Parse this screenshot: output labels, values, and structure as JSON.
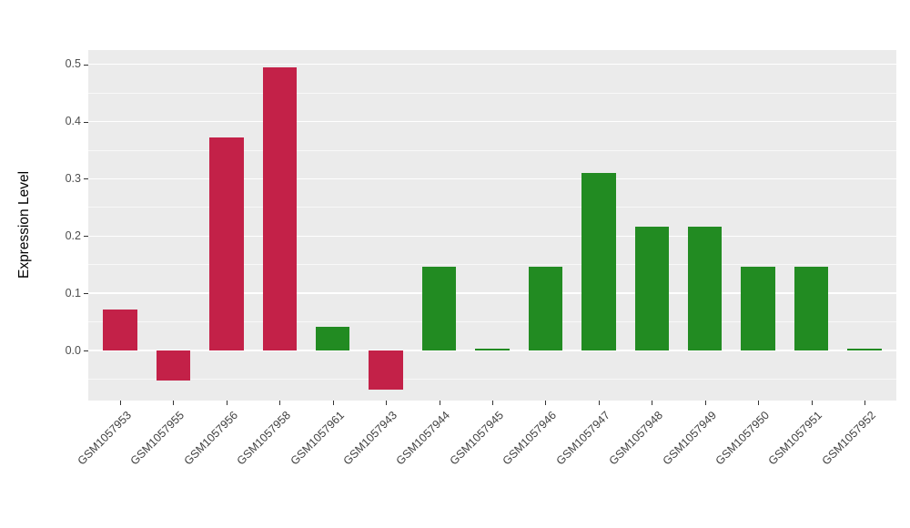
{
  "chart_data": {
    "type": "bar",
    "title": "",
    "xlabel": "",
    "ylabel": "Expression Level",
    "ylim": [
      -0.0875,
      0.525
    ],
    "yticks": [
      0,
      0.1,
      0.2,
      0.3,
      0.4,
      0.5
    ],
    "ytick_labels": [
      "0.0",
      "0.1",
      "0.2",
      "0.3",
      "0.4",
      "0.5"
    ],
    "minor_grid_step": 0.05,
    "grid": true,
    "legend": "none",
    "panel_bg": "#EBEBEB",
    "grid_color": "#FFFFFF",
    "categories": [
      "GSM1057953",
      "GSM1057955",
      "GSM1057956",
      "GSM1057958",
      "GSM1057961",
      "GSM1057943",
      "GSM1057944",
      "GSM1057945",
      "GSM1057946",
      "GSM1057947",
      "GSM1057948",
      "GSM1057949",
      "GSM1057950",
      "GSM1057951",
      "GSM1057952"
    ],
    "values": [
      0.072,
      -0.052,
      0.373,
      0.495,
      0.042,
      -0.068,
      0.146,
      0.003,
      0.146,
      0.311,
      0.217,
      0.217,
      0.146,
      0.146,
      0.003
    ],
    "bar_groups": [
      "red",
      "red",
      "red",
      "red",
      "green",
      "red",
      "green",
      "green",
      "green",
      "green",
      "green",
      "green",
      "green",
      "green",
      "green"
    ],
    "group_colors": {
      "red": "#C32148",
      "green": "#228B22"
    }
  }
}
